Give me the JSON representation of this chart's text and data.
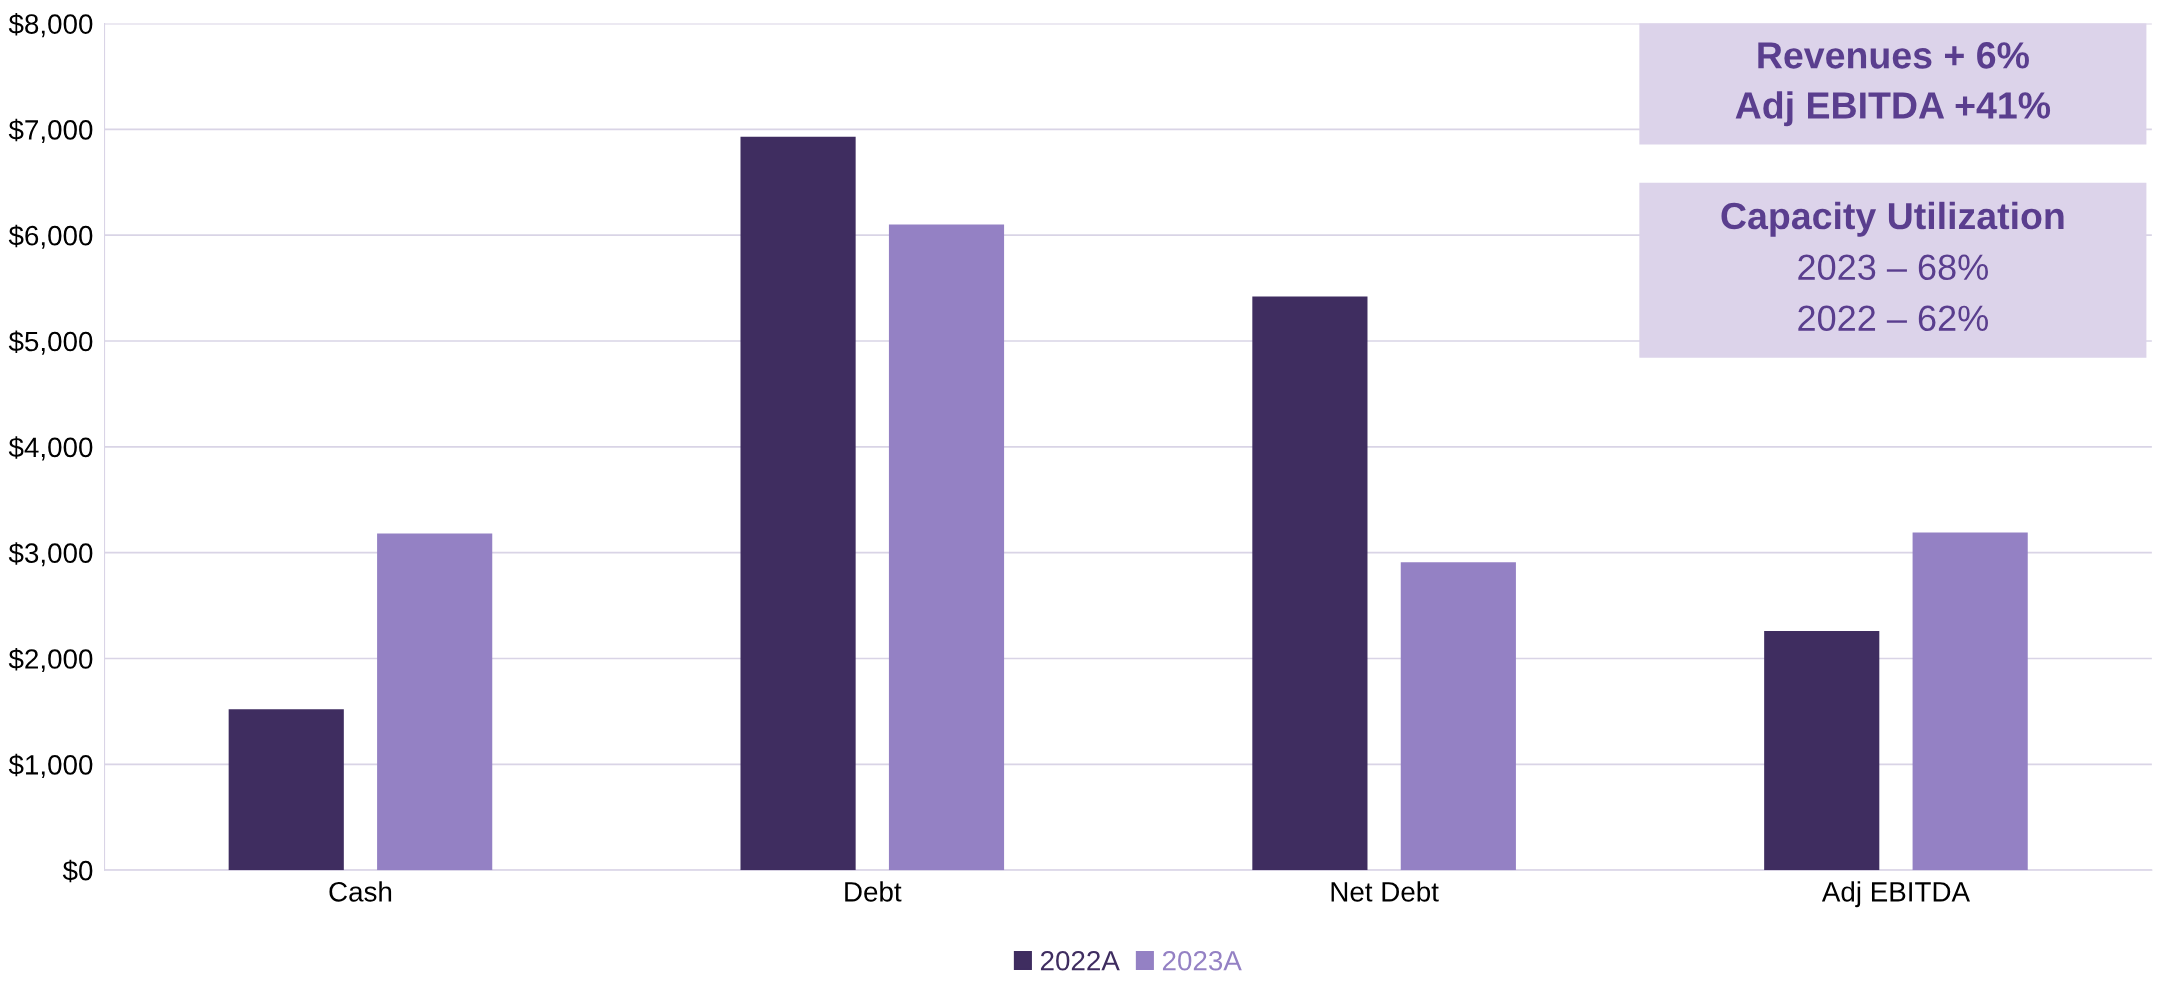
{
  "chart_data": {
    "type": "bar",
    "categories": [
      "Cash",
      "Debt",
      "Net Debt",
      "Adj EBITDA"
    ],
    "series": [
      {
        "name": "2022A",
        "color": "#3f2d60",
        "values": [
          1520,
          6930,
          5420,
          2260
        ]
      },
      {
        "name": "2023A",
        "color": "#9481c4",
        "values": [
          3180,
          6100,
          2910,
          3190
        ]
      }
    ],
    "ylim": [
      0,
      8000
    ],
    "yticks": [
      {
        "value": 0,
        "label": "$0"
      },
      {
        "value": 1000,
        "label": "$1,000"
      },
      {
        "value": 2000,
        "label": "$2,000"
      },
      {
        "value": 3000,
        "label": "$3,000"
      },
      {
        "value": 4000,
        "label": "$4,000"
      },
      {
        "value": 5000,
        "label": "$5,000"
      },
      {
        "value": 6000,
        "label": "$6,000"
      },
      {
        "value": 7000,
        "label": "$7,000"
      },
      {
        "value": 8000,
        "label": "$8,000"
      }
    ],
    "grid": "y",
    "legend": "bottom",
    "annotations": [
      "Revenues + 6%\nAdj EBITDA +41%",
      "Capacity Utilization\n2023 – 68%\n2022 – 62%"
    ]
  }
}
